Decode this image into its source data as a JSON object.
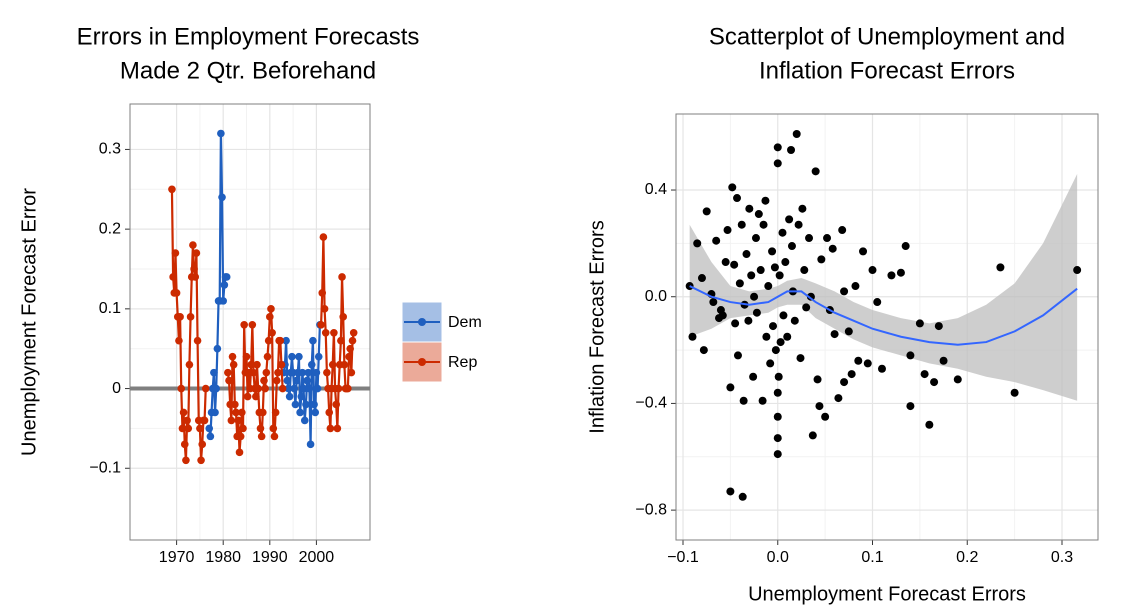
{
  "chart_data": [
    {
      "type": "line",
      "title": [
        "Errors in Employment Forecasts",
        "Made 2 Qtr. Beforehand"
      ],
      "y_label": "Unemployment Forecast Error",
      "xlim": [
        1960,
        2011.5
      ],
      "ylim": [
        -0.19,
        0.357
      ],
      "xticks": [
        1970,
        1980,
        1990,
        2000
      ],
      "yticks": [
        {
          "value": -0.1,
          "label": "−0.1"
        },
        0,
        0.1,
        0.2,
        0.3
      ],
      "grid": true,
      "hline": 0,
      "legend": "right",
      "series": [
        {
          "name": "Dem",
          "color": "#1f5fbf",
          "x": [
            1977,
            1977.25,
            1977.5,
            1977.75,
            1978,
            1978.25,
            1978.5,
            1978.75,
            1979,
            1979.25,
            1979.5,
            1979.75,
            1980,
            1980.25,
            1980.5,
            1980.75,
            null,
            1993,
            1993.25,
            1993.5,
            1993.75,
            1994,
            1994.25,
            1994.5,
            1994.75,
            1995,
            1995.25,
            1995.5,
            1995.75,
            1996,
            1996.25,
            1996.5,
            1996.75,
            1997,
            1997.25,
            1997.5,
            1997.75,
            1998,
            1998.25,
            1998.5,
            1998.75,
            1999,
            1999.25,
            1999.5,
            1999.75,
            2000,
            2000.25,
            2000.5,
            2000.75
          ],
          "values": [
            -0.05,
            -0.06,
            -0.03,
            0.0,
            0.02,
            -0.03,
            0.0,
            0.05,
            0.11,
            0.11,
            0.32,
            0.24,
            0.11,
            0.13,
            0.14,
            0.14,
            null,
            0.02,
            0.03,
            0.06,
            0.01,
            0.0,
            -0.01,
            0.02,
            0.04,
            0.02,
            0.0,
            -0.02,
            0.01,
            0.02,
            0.04,
            -0.03,
            -0.01,
            0.02,
            0.0,
            -0.04,
            -0.02,
            0.01,
            0.02,
            0.0,
            -0.07,
            0.03,
            0.06,
            -0.02,
            -0.03,
            0.02,
            0.0,
            0.04,
            0.08
          ]
        },
        {
          "name": "Rep",
          "color": "#cc2a00",
          "x": [
            1969,
            1969.25,
            1969.5,
            1969.75,
            1970,
            1970.25,
            1970.5,
            1970.75,
            1971,
            1971.25,
            1971.5,
            1971.75,
            1972,
            1972.25,
            1972.5,
            1972.75,
            1973,
            1973.25,
            1973.5,
            1973.75,
            1974,
            1974.25,
            1974.5,
            1974.75,
            1975,
            1975.25,
            1975.5,
            1975.75,
            1976,
            1976.25,
            null,
            1981,
            1981.25,
            1981.5,
            1981.75,
            1982,
            1982.25,
            1982.5,
            1982.75,
            1983,
            1983.25,
            1983.5,
            1983.75,
            1984,
            1984.25,
            1984.5,
            1984.75,
            1985,
            1985.25,
            1985.5,
            1985.75,
            1986,
            1986.25,
            1986.5,
            1986.75,
            1987,
            1987.25,
            1987.5,
            1987.75,
            1988,
            1988.25,
            1988.5,
            1988.75,
            1989,
            1989.25,
            1989.5,
            1989.75,
            1990,
            1990.25,
            1990.5,
            1990.75,
            1991,
            1991.25,
            1991.5,
            1991.75,
            1992,
            1992.25,
            1992.5,
            1992.75,
            null,
            2001,
            2001.25,
            2001.5,
            2001.75,
            2002,
            2002.25,
            2002.5,
            2002.75,
            2003,
            2003.25,
            2003.5,
            2003.75,
            2004,
            2004.25,
            2004.5,
            2004.75,
            2005,
            2005.25,
            2005.5,
            2005.75,
            2006,
            2006.25,
            2006.5,
            2006.75,
            2007,
            2007.25,
            2007.5,
            2007.75,
            2008
          ],
          "values": [
            0.25,
            0.14,
            0.12,
            0.17,
            0.12,
            0.09,
            0.06,
            0.09,
            0.0,
            -0.05,
            -0.03,
            -0.07,
            -0.09,
            -0.04,
            -0.05,
            0.03,
            0.09,
            0.14,
            0.18,
            0.15,
            0.14,
            0.17,
            0.06,
            -0.04,
            -0.05,
            -0.09,
            -0.07,
            -0.04,
            -0.04,
            0.0,
            null,
            0.02,
            0.01,
            -0.02,
            -0.04,
            0.04,
            0.03,
            -0.02,
            -0.03,
            -0.06,
            -0.04,
            -0.08,
            -0.06,
            -0.03,
            -0.05,
            0.08,
            0.02,
            0.04,
            -0.01,
            0.02,
            0.0,
            0.03,
            0.08,
            0.02,
            0.0,
            -0.01,
            0.03,
            0.0,
            -0.03,
            -0.05,
            -0.06,
            -0.03,
            0.01,
            0.0,
            0.02,
            0.04,
            0.06,
            0.09,
            0.1,
            0.07,
            -0.05,
            -0.06,
            -0.03,
            0.01,
            0.02,
            0.06,
            0.06,
            0.03,
            0.0,
            null,
            0.08,
            0.12,
            0.19,
            0.1,
            0.07,
            0.02,
            0.0,
            -0.03,
            -0.05,
            0.0,
            0.03,
            0.07,
            0.0,
            -0.02,
            -0.05,
            0.0,
            0.03,
            0.06,
            0.14,
            0.09,
            0.03,
            0.0,
            0.0,
            0.0,
            0.04,
            0.05,
            0.02,
            0.06,
            0.07
          ]
        }
      ]
    },
    {
      "type": "scatter",
      "title": [
        "Scatterplot of Unemployment and",
        "Inflation Forecast Errors"
      ],
      "x_label": "Unemployment Forecast Errors",
      "y_label": "Inflation Forecast Errors",
      "xlim": [
        -0.1074,
        0.338
      ],
      "ylim": [
        -0.912,
        0.685
      ],
      "xticks": [
        {
          "value": -0.1,
          "label": "−0.1"
        },
        {
          "value": 0,
          "label": "0.0"
        },
        0.1,
        0.2,
        0.3
      ],
      "yticks": [
        {
          "value": -0.8,
          "label": "−0.8"
        },
        {
          "value": -0.4,
          "label": "−0.4"
        },
        {
          "value": 0,
          "label": "0.0"
        },
        0.4
      ],
      "grid": true,
      "color": "#000000",
      "x": [
        -0.093,
        -0.09,
        -0.085,
        -0.08,
        -0.078,
        -0.075,
        -0.07,
        -0.068,
        -0.065,
        -0.062,
        -0.06,
        -0.058,
        -0.055,
        -0.053,
        -0.05,
        -0.05,
        -0.048,
        -0.046,
        -0.045,
        -0.043,
        -0.042,
        -0.04,
        -0.038,
        -0.037,
        -0.036,
        -0.035,
        -0.033,
        -0.031,
        -0.03,
        -0.028,
        -0.026,
        -0.025,
        -0.023,
        -0.022,
        -0.02,
        -0.018,
        -0.016,
        -0.015,
        -0.013,
        -0.012,
        -0.01,
        -0.008,
        -0.006,
        -0.005,
        -0.003,
        -0.002,
        0,
        0,
        0,
        0,
        0,
        0,
        0.001,
        0.002,
        0.003,
        0.005,
        0.006,
        0.008,
        0.01,
        0.012,
        0.014,
        0.015,
        0.016,
        0.018,
        0.02,
        0.022,
        0.024,
        0.026,
        0.028,
        0.03,
        0.033,
        0.035,
        0.037,
        0.04,
        0.042,
        0.044,
        0.046,
        0.05,
        0.052,
        0.055,
        0.058,
        0.06,
        0.064,
        0.068,
        0.07,
        0.075,
        0.078,
        0.082,
        0.085,
        0.09,
        0.095,
        0.1,
        0.105,
        0.11,
        0.12,
        0.13,
        0.135,
        0.14,
        0.14,
        0.15,
        0.155,
        0.16,
        0.165,
        0.17,
        0.175,
        0.19,
        0.235,
        0.25,
        0.316,
        0.07
      ],
      "values": [
        0.04,
        -0.15,
        0.2,
        0.07,
        -0.2,
        0.32,
        0.01,
        -0.02,
        0.21,
        -0.08,
        -0.05,
        -0.07,
        0.13,
        0.25,
        -0.73,
        -0.34,
        0.41,
        0.12,
        -0.1,
        0.37,
        -0.22,
        0.05,
        0.27,
        -0.75,
        -0.39,
        -0.03,
        0.16,
        -0.09,
        0.33,
        0.08,
        -0.3,
        0,
        0.22,
        -0.06,
        0.31,
        0.1,
        -0.39,
        0.27,
        0.36,
        -0.15,
        0.04,
        -0.25,
        0.17,
        -0.11,
        0.11,
        -0.2,
        0.56,
        0.5,
        -0.36,
        -0.59,
        -0.53,
        -0.45,
        -0.3,
        0.08,
        -0.17,
        0.24,
        -0.07,
        0.13,
        -0.15,
        0.29,
        0.55,
        0.19,
        0.02,
        -0.09,
        0.61,
        0.27,
        -0.23,
        0.33,
        0.1,
        -0.04,
        0.22,
        0,
        -0.52,
        0.47,
        -0.31,
        -0.41,
        0.14,
        -0.45,
        0.22,
        -0.05,
        0.18,
        -0.14,
        -0.38,
        0.25,
        -0.32,
        -0.13,
        -0.29,
        0.04,
        -0.24,
        0.17,
        -0.25,
        0.1,
        -0.02,
        -0.27,
        0.08,
        0.09,
        0.19,
        -0.22,
        -0.41,
        -0.1,
        -0.29,
        -0.48,
        -0.32,
        -0.11,
        -0.24,
        -0.31,
        0.11,
        -0.36,
        0.1,
        0.02
      ],
      "smooth": {
        "color": "#3366ff",
        "band_color": "#bdbdbd",
        "x": [
          -0.093,
          -0.07,
          -0.05,
          -0.03,
          -0.01,
          0,
          0.01,
          0.025,
          0.04,
          0.06,
          0.08,
          0.1,
          0.13,
          0.16,
          0.19,
          0.22,
          0.25,
          0.28,
          0.316
        ],
        "values": [
          0.04,
          0.0,
          -0.02,
          -0.03,
          -0.02,
          0.0,
          0.02,
          0.02,
          -0.02,
          -0.06,
          -0.09,
          -0.12,
          -0.15,
          -0.17,
          -0.18,
          -0.17,
          -0.13,
          -0.07,
          0.03
        ],
        "upper": [
          0.27,
          0.13,
          0.04,
          0.02,
          0.03,
          0.04,
          0.06,
          0.07,
          0.05,
          0.02,
          -0.02,
          -0.05,
          -0.08,
          -0.1,
          -0.08,
          -0.03,
          0.05,
          0.2,
          0.46
        ],
        "lower": [
          -0.15,
          -0.12,
          -0.08,
          -0.07,
          -0.06,
          -0.04,
          -0.03,
          -0.03,
          -0.08,
          -0.12,
          -0.16,
          -0.19,
          -0.22,
          -0.25,
          -0.27,
          -0.3,
          -0.32,
          -0.35,
          -0.39
        ]
      }
    }
  ]
}
